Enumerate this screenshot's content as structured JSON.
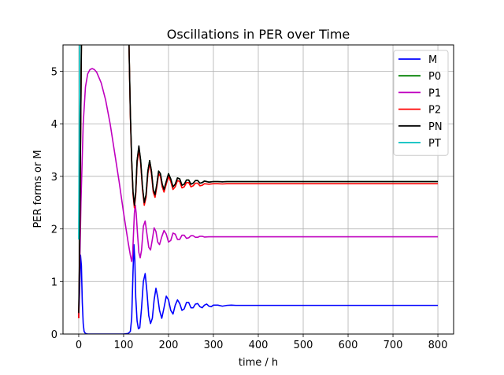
{
  "chart_data": {
    "type": "line",
    "title": "Oscillations in PER over Time",
    "xlabel": "time / h",
    "ylabel": "PER forms or M",
    "xlim": [
      -35,
      835
    ],
    "ylim": [
      0,
      5.5
    ],
    "xticks": [
      0,
      100,
      200,
      300,
      400,
      500,
      600,
      700,
      800
    ],
    "yticks": [
      0,
      1,
      2,
      3,
      4,
      5
    ],
    "grid": true,
    "legend_position": "top-right",
    "series": [
      {
        "name": "M",
        "color": "#0000ff",
        "x": [
          0,
          2,
          4,
          6,
          8,
          10,
          12,
          15,
          20,
          30,
          50,
          80,
          100,
          110,
          115,
          118,
          121,
          123,
          125,
          127,
          130,
          133,
          136,
          140,
          144,
          148,
          152,
          156,
          160,
          164,
          168,
          172,
          176,
          180,
          185,
          190,
          195,
          200,
          205,
          210,
          215,
          220,
          225,
          230,
          235,
          240,
          245,
          250,
          255,
          260,
          265,
          270,
          275,
          280,
          285,
          290,
          295,
          300,
          310,
          320,
          330,
          340,
          350,
          360,
          380,
          400,
          430,
          460,
          500,
          600,
          700,
          800
        ],
        "y": [
          0.35,
          0.8,
          1.5,
          1.3,
          0.6,
          0.2,
          0.05,
          0.01,
          0.0,
          0.0,
          0.0,
          0.0,
          0.0,
          0.01,
          0.05,
          0.3,
          1.2,
          1.7,
          1.4,
          0.7,
          0.25,
          0.1,
          0.12,
          0.5,
          1.0,
          1.15,
          0.8,
          0.35,
          0.2,
          0.3,
          0.65,
          0.87,
          0.7,
          0.45,
          0.3,
          0.5,
          0.72,
          0.65,
          0.45,
          0.38,
          0.55,
          0.65,
          0.58,
          0.45,
          0.48,
          0.6,
          0.6,
          0.5,
          0.5,
          0.57,
          0.58,
          0.52,
          0.5,
          0.55,
          0.57,
          0.53,
          0.52,
          0.55,
          0.55,
          0.53,
          0.545,
          0.55,
          0.545,
          0.545,
          0.545,
          0.545,
          0.545,
          0.545,
          0.545,
          0.545,
          0.545,
          0.545
        ]
      },
      {
        "name": "P0",
        "color": "#008000",
        "x": [
          0,
          2,
          4,
          6,
          10,
          14,
          20,
          40,
          60,
          80,
          100,
          110,
          112,
          115,
          118,
          121,
          124,
          127,
          130,
          134,
          138,
          142,
          146,
          150,
          154,
          158,
          162,
          166,
          170,
          174,
          178,
          182,
          186,
          190,
          195,
          200,
          205,
          210,
          215,
          220,
          225,
          230,
          235,
          240,
          245,
          250,
          255,
          260,
          265,
          270,
          275,
          280,
          290,
          300,
          310,
          320,
          330,
          340,
          360,
          380,
          400,
          450,
          500,
          600,
          700,
          800
        ],
        "y": [
          0.3,
          1.5,
          3.5,
          5.5,
          6.0,
          6.0,
          6.0,
          6.0,
          6.0,
          6.0,
          6.0,
          5.8,
          5.5,
          4.2,
          3.3,
          2.7,
          2.45,
          2.7,
          3.3,
          3.55,
          3.3,
          2.8,
          2.5,
          2.65,
          3.1,
          3.3,
          3.1,
          2.75,
          2.65,
          2.85,
          3.1,
          3.05,
          2.85,
          2.75,
          2.9,
          3.05,
          2.95,
          2.8,
          2.85,
          2.97,
          2.95,
          2.83,
          2.85,
          2.93,
          2.93,
          2.85,
          2.87,
          2.92,
          2.92,
          2.87,
          2.88,
          2.91,
          2.89,
          2.9,
          2.9,
          2.895,
          2.9,
          2.9,
          2.9,
          2.9,
          2.9,
          2.9,
          2.9,
          2.9,
          2.9,
          2.9
        ]
      },
      {
        "name": "P1",
        "color": "#bf00bf",
        "x": [
          0,
          2,
          5,
          10,
          15,
          20,
          25,
          30,
          35,
          40,
          50,
          60,
          70,
          80,
          90,
          100,
          110,
          115,
          118,
          120,
          122,
          124,
          126,
          128,
          131,
          134,
          137,
          140,
          144,
          148,
          152,
          156,
          160,
          164,
          168,
          172,
          176,
          180,
          185,
          190,
          195,
          200,
          205,
          210,
          215,
          220,
          225,
          230,
          235,
          240,
          245,
          250,
          255,
          260,
          265,
          270,
          275,
          280,
          290,
          300,
          310,
          320,
          340,
          360,
          380,
          400,
          450,
          500,
          600,
          700,
          800
        ],
        "y": [
          0.3,
          1.2,
          2.5,
          4.0,
          4.7,
          4.95,
          5.03,
          5.05,
          5.03,
          4.98,
          4.78,
          4.45,
          4.0,
          3.45,
          2.9,
          2.3,
          1.75,
          1.5,
          1.38,
          1.5,
          1.9,
          2.3,
          2.45,
          2.3,
          1.9,
          1.55,
          1.45,
          1.6,
          2.05,
          2.15,
          1.9,
          1.65,
          1.6,
          1.8,
          2.02,
          1.95,
          1.75,
          1.7,
          1.85,
          1.97,
          1.9,
          1.75,
          1.78,
          1.92,
          1.9,
          1.8,
          1.8,
          1.88,
          1.88,
          1.82,
          1.83,
          1.87,
          1.87,
          1.84,
          1.84,
          1.86,
          1.86,
          1.845,
          1.85,
          1.85,
          1.85,
          1.85,
          1.85,
          1.85,
          1.85,
          1.85,
          1.85,
          1.85,
          1.85,
          1.85,
          1.85
        ]
      },
      {
        "name": "P2",
        "color": "#ff0000",
        "x": [
          0,
          2,
          4,
          6,
          10,
          14,
          20,
          40,
          60,
          80,
          100,
          110,
          112,
          115,
          118,
          121,
          124,
          127,
          130,
          134,
          138,
          142,
          146,
          150,
          154,
          158,
          162,
          166,
          170,
          174,
          178,
          182,
          186,
          190,
          195,
          200,
          205,
          210,
          215,
          220,
          225,
          230,
          235,
          240,
          245,
          250,
          255,
          260,
          265,
          270,
          275,
          280,
          290,
          300,
          310,
          320,
          330,
          340,
          360,
          380,
          400,
          450,
          500,
          600,
          700,
          800
        ],
        "y": [
          0.3,
          1.5,
          3.5,
          5.5,
          6.0,
          6.0,
          6.0,
          6.0,
          6.0,
          6.0,
          6.0,
          5.8,
          5.5,
          4.15,
          3.25,
          2.65,
          2.4,
          2.65,
          3.25,
          3.5,
          3.25,
          2.75,
          2.45,
          2.6,
          3.05,
          3.25,
          3.05,
          2.7,
          2.6,
          2.8,
          3.05,
          3.0,
          2.8,
          2.7,
          2.85,
          3.0,
          2.9,
          2.75,
          2.8,
          2.92,
          2.9,
          2.78,
          2.8,
          2.88,
          2.88,
          2.8,
          2.82,
          2.87,
          2.87,
          2.82,
          2.83,
          2.86,
          2.85,
          2.86,
          2.86,
          2.855,
          2.86,
          2.86,
          2.86,
          2.86,
          2.86,
          2.86,
          2.86,
          2.86,
          2.86,
          2.86
        ]
      },
      {
        "name": "PN",
        "color": "#000000",
        "x": [
          0,
          2,
          4,
          6,
          10,
          14,
          20,
          40,
          60,
          80,
          100,
          110,
          112,
          115,
          118,
          121,
          124,
          127,
          130,
          134,
          138,
          142,
          146,
          150,
          154,
          158,
          162,
          166,
          170,
          174,
          178,
          182,
          186,
          190,
          195,
          200,
          205,
          210,
          215,
          220,
          225,
          230,
          235,
          240,
          245,
          250,
          255,
          260,
          265,
          270,
          275,
          280,
          290,
          300,
          310,
          320,
          330,
          340,
          360,
          380,
          400,
          450,
          500,
          600,
          700,
          800
        ],
        "y": [
          0.4,
          1.6,
          3.6,
          5.5,
          6.0,
          6.0,
          6.0,
          6.0,
          6.0,
          6.0,
          6.0,
          5.8,
          5.5,
          4.2,
          3.3,
          2.7,
          2.45,
          2.7,
          3.3,
          3.58,
          3.3,
          2.8,
          2.5,
          2.65,
          3.1,
          3.3,
          3.1,
          2.75,
          2.65,
          2.85,
          3.1,
          3.05,
          2.85,
          2.75,
          2.9,
          3.05,
          2.95,
          2.8,
          2.85,
          2.97,
          2.95,
          2.83,
          2.85,
          2.93,
          2.93,
          2.85,
          2.87,
          2.92,
          2.92,
          2.87,
          2.88,
          2.91,
          2.89,
          2.9,
          2.9,
          2.895,
          2.9,
          2.9,
          2.9,
          2.9,
          2.9,
          2.9,
          2.9,
          2.9,
          2.9,
          2.9
        ]
      },
      {
        "name": "PT",
        "color": "#00bfbf",
        "x": [
          0,
          1,
          2,
          3
        ],
        "y": [
          1.8,
          3.5,
          5.2,
          6.0
        ]
      }
    ]
  }
}
